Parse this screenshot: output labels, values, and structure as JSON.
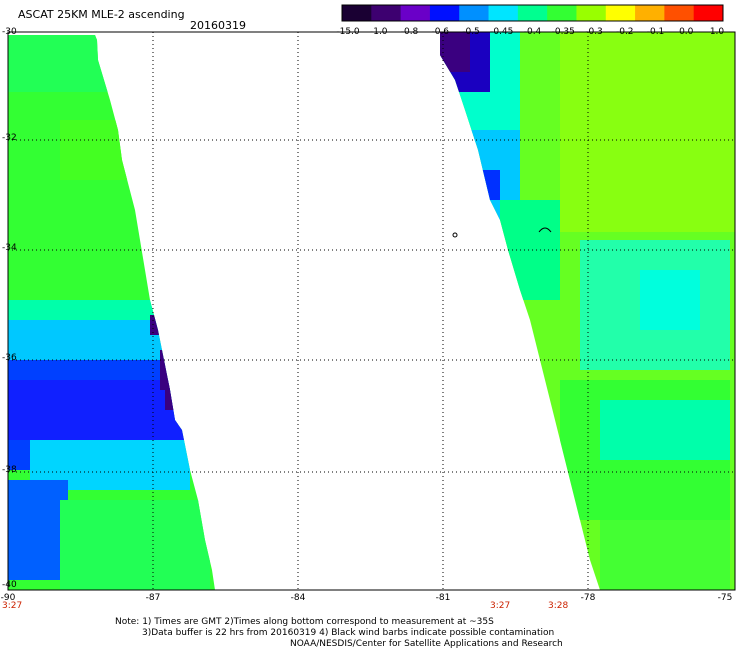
{
  "header": {
    "title": "ASCAT 25KM MLE-2 ascending",
    "date": "20160319"
  },
  "colorbar": {
    "labels": [
      "-15.0",
      "-1.0",
      "-0.8",
      "-0.6",
      "-0.5",
      "-0.45",
      "-0.4",
      "-0.35",
      "-0.3",
      "-0.2",
      "-0.1",
      "0.0",
      "1.0"
    ],
    "colors": [
      "#1a0033",
      "#3d0070",
      "#6a00c8",
      "#0010ff",
      "#0090ff",
      "#00e5ff",
      "#00ff90",
      "#33ff33",
      "#99ff00",
      "#ffff00",
      "#ffb000",
      "#ff5000",
      "#ff0000"
    ]
  },
  "map": {
    "lat_labels": [
      "-30",
      "-32",
      "-34",
      "-36",
      "-38",
      "-40"
    ],
    "lon_labels": [
      "-90",
      "-87",
      "-84",
      "-81",
      "-78",
      "-75"
    ],
    "times": [
      "3:27",
      "3:27",
      "3:28"
    ]
  },
  "notes": {
    "line1": "Note: 1) Times are GMT 2)Times along bottom correspond to measurement at ~35S",
    "line2": "3)Data buffer is 22 hrs from 20160319 4) Black wind barbs indicate possible contamination",
    "line3": "NOAA/NESDIS/Center for Satellite Applications and Research"
  }
}
